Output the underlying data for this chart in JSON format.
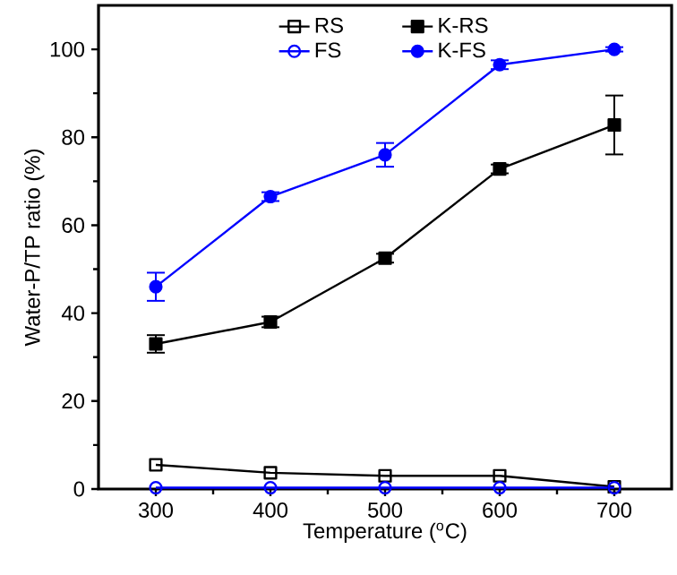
{
  "chart_data": {
    "type": "line",
    "xlabel": "Temperature ($^{o}$C)",
    "ylabel": "Water-P/TP ratio (%)",
    "x": [
      300,
      400,
      500,
      600,
      700
    ],
    "series": [
      {
        "name": "RS",
        "color": "#000000",
        "marker": "square",
        "values": [
          5.5,
          3.7,
          3,
          3,
          0.5
        ]
      },
      {
        "name": "K-RS",
        "color": "#000000",
        "marker": "square",
        "values": [
          33,
          38,
          52.5,
          72.8,
          82.8
        ],
        "errors": [
          2,
          1.2,
          1,
          1,
          6.7
        ]
      },
      {
        "name": "FS",
        "color": "#0000ff",
        "marker": "circle",
        "values": [
          0.3,
          0.3,
          0.3,
          0.3,
          0.3
        ]
      },
      {
        "name": "K-FS",
        "color": "#0000ff",
        "marker": "circle",
        "values": [
          46,
          66.5,
          76,
          96.5,
          100
        ],
        "errors": [
          3.2,
          1,
          2.7,
          1,
          0.5
        ]
      }
    ],
    "xlim": [
      250,
      750
    ],
    "ylim": [
      0,
      110
    ],
    "xticks": [
      300,
      400,
      500,
      600,
      700
    ],
    "yticks": [
      0,
      20,
      40,
      60,
      80,
      100
    ],
    "grid": false,
    "legend": "top",
    "line_style": "solid"
  }
}
